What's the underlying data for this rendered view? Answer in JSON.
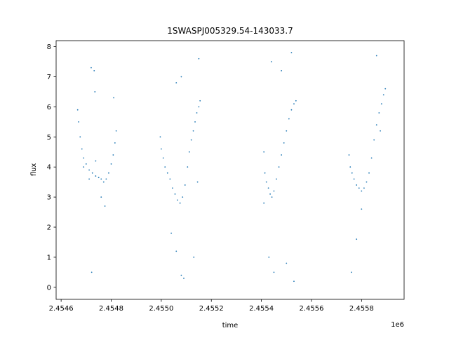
{
  "chart_data": {
    "type": "scatter",
    "title": "1SWASPJ005329.54-143033.7",
    "xlabel": "time",
    "ylabel": "flux",
    "x_offset_label": "1e6",
    "xlim": [
      2.45458,
      2.45597
    ],
    "ylim": [
      -0.4,
      8.2
    ],
    "xticks": [
      2.4546,
      2.4548,
      2.455,
      2.4552,
      2.4554,
      2.4556,
      2.4558
    ],
    "xtick_labels": [
      "2.4546",
      "2.4548",
      "2.4550",
      "2.4552",
      "2.4554",
      "2.4556",
      "2.4558"
    ],
    "yticks": [
      0,
      1,
      2,
      3,
      4,
      5,
      6,
      7,
      8
    ],
    "ytick_labels": [
      "0",
      "1",
      "2",
      "3",
      "4",
      "5",
      "6",
      "7",
      "8"
    ],
    "grid": false,
    "marker_color": "#1f77b4",
    "series": [
      {
        "points": [
          [
            2.454666,
            5.9
          ],
          [
            2.45467,
            5.5
          ],
          [
            2.454676,
            5.0
          ],
          [
            2.454683,
            4.6
          ],
          [
            2.45469,
            4.3
          ],
          [
            2.4547,
            4.1
          ],
          [
            2.454712,
            3.9
          ],
          [
            2.454725,
            3.8
          ],
          [
            2.454738,
            3.7
          ],
          [
            2.45475,
            3.65
          ],
          [
            2.45476,
            3.6
          ],
          [
            2.45477,
            3.5
          ],
          [
            2.45478,
            3.6
          ],
          [
            2.45479,
            3.8
          ],
          [
            2.4548,
            4.1
          ],
          [
            2.454808,
            4.4
          ],
          [
            2.454815,
            4.8
          ],
          [
            2.45482,
            5.2
          ],
          [
            2.45469,
            4.0
          ],
          [
            2.454712,
            3.6
          ],
          [
            2.454738,
            4.2
          ],
          [
            2.45476,
            3.0
          ],
          [
            2.454775,
            2.7
          ],
          [
            2.45472,
            7.3
          ],
          [
            2.454732,
            7.2
          ],
          [
            2.454722,
            0.5
          ],
          [
            2.454735,
            6.5
          ],
          [
            2.45481,
            6.3
          ],
          [
            2.454996,
            5.0
          ],
          [
            2.455,
            4.6
          ],
          [
            2.455008,
            4.3
          ],
          [
            2.455015,
            4.0
          ],
          [
            2.455025,
            3.8
          ],
          [
            2.455035,
            3.6
          ],
          [
            2.455045,
            3.3
          ],
          [
            2.455055,
            3.1
          ],
          [
            2.455065,
            2.9
          ],
          [
            2.455075,
            2.8
          ],
          [
            2.455085,
            3.0
          ],
          [
            2.455095,
            3.4
          ],
          [
            2.455105,
            4.0
          ],
          [
            2.455112,
            4.5
          ],
          [
            2.45512,
            4.9
          ],
          [
            2.455128,
            5.2
          ],
          [
            2.455135,
            5.5
          ],
          [
            2.455142,
            5.8
          ],
          [
            2.45515,
            6.0
          ],
          [
            2.455155,
            6.2
          ],
          [
            2.45504,
            1.8
          ],
          [
            2.45506,
            1.2
          ],
          [
            2.45508,
            0.4
          ],
          [
            2.45509,
            0.3
          ],
          [
            2.45506,
            6.8
          ],
          [
            2.45508,
            7.0
          ],
          [
            2.45513,
            1.0
          ],
          [
            2.45515,
            7.6
          ],
          [
            2.455145,
            3.5
          ],
          [
            2.45541,
            4.5
          ],
          [
            2.455414,
            3.8
          ],
          [
            2.45542,
            3.5
          ],
          [
            2.455428,
            3.3
          ],
          [
            2.455435,
            3.1
          ],
          [
            2.455442,
            3.0
          ],
          [
            2.45545,
            3.2
          ],
          [
            2.45546,
            3.6
          ],
          [
            2.45547,
            4.0
          ],
          [
            2.45548,
            4.4
          ],
          [
            2.45549,
            4.8
          ],
          [
            2.4555,
            5.2
          ],
          [
            2.45551,
            5.6
          ],
          [
            2.45552,
            5.9
          ],
          [
            2.45553,
            6.1
          ],
          [
            2.455538,
            6.2
          ],
          [
            2.45541,
            2.8
          ],
          [
            2.45543,
            1.0
          ],
          [
            2.45545,
            0.5
          ],
          [
            2.45544,
            7.5
          ],
          [
            2.45548,
            7.2
          ],
          [
            2.4555,
            0.8
          ],
          [
            2.45552,
            7.8
          ],
          [
            2.45553,
            0.2
          ],
          [
            2.45575,
            4.4
          ],
          [
            2.455755,
            4.0
          ],
          [
            2.455762,
            3.8
          ],
          [
            2.45577,
            3.6
          ],
          [
            2.45578,
            3.4
          ],
          [
            2.45579,
            3.3
          ],
          [
            2.4558,
            3.2
          ],
          [
            2.45581,
            3.3
          ],
          [
            2.45582,
            3.5
          ],
          [
            2.45583,
            3.8
          ],
          [
            2.45584,
            4.3
          ],
          [
            2.45585,
            4.9
          ],
          [
            2.45586,
            5.4
          ],
          [
            2.45587,
            5.8
          ],
          [
            2.45588,
            6.1
          ],
          [
            2.455888,
            6.4
          ],
          [
            2.455895,
            6.6
          ],
          [
            2.45576,
            0.5
          ],
          [
            2.45578,
            1.6
          ],
          [
            2.4558,
            2.6
          ],
          [
            2.45586,
            7.7
          ],
          [
            2.455875,
            5.2
          ]
        ]
      }
    ]
  }
}
